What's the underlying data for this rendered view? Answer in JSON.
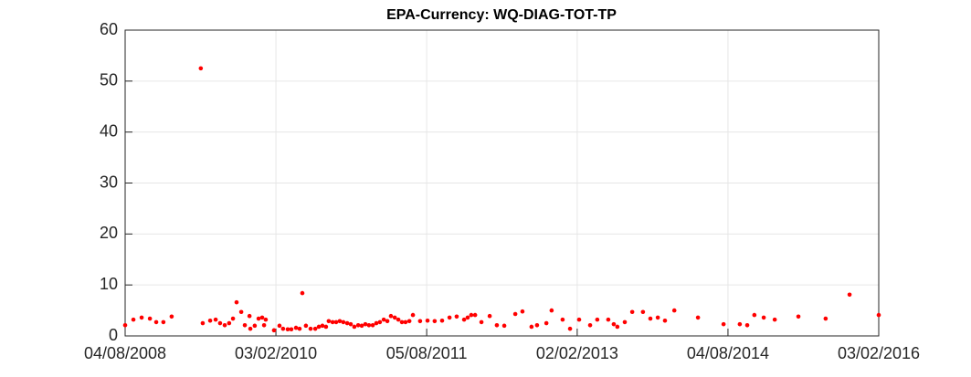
{
  "chart_data": {
    "type": "scatter",
    "title": "EPA-Currency: WQ-DIAG-TOT-TP",
    "color": "#ff0000",
    "grid": true,
    "xlim": [
      "2008-08-04",
      "2016-02-03"
    ],
    "xticks": [
      {
        "value": "2008-08-04",
        "label": "04/08/2008"
      },
      {
        "value": "2010-02-03",
        "label": "03/02/2010"
      },
      {
        "value": "2011-08-05",
        "label": "05/08/2011"
      },
      {
        "value": "2013-02-02",
        "label": "02/02/2013"
      },
      {
        "value": "2014-08-04",
        "label": "04/08/2014"
      },
      {
        "value": "2016-02-03",
        "label": "03/02/2016"
      }
    ],
    "ylim": [
      0,
      60
    ],
    "yticks": [
      0,
      10,
      20,
      30,
      40,
      50,
      60
    ],
    "x": [
      "2008-08-04",
      "2008-09-03",
      "2008-10-03",
      "2008-11-02",
      "2008-11-25",
      "2008-12-21",
      "2009-01-20",
      "2009-05-06",
      "2009-05-13",
      "2009-06-09",
      "2009-06-29",
      "2009-07-15",
      "2009-08-01",
      "2009-08-17",
      "2009-08-31",
      "2009-09-13",
      "2009-09-30",
      "2009-10-13",
      "2009-10-30",
      "2009-11-02",
      "2009-11-18",
      "2009-12-02",
      "2009-12-15",
      "2009-12-22",
      "2009-12-28",
      "2010-01-27",
      "2010-02-16",
      "2010-03-01",
      "2010-03-18",
      "2010-03-31",
      "2010-04-17",
      "2010-04-30",
      "2010-05-10",
      "2010-05-23",
      "2010-06-09",
      "2010-06-26",
      "2010-07-09",
      "2010-07-22",
      "2010-08-04",
      "2010-08-14",
      "2010-08-28",
      "2010-09-10",
      "2010-09-23",
      "2010-10-06",
      "2010-10-20",
      "2010-11-02",
      "2010-11-15",
      "2010-11-29",
      "2010-12-12",
      "2010-12-25",
      "2011-01-07",
      "2011-01-21",
      "2011-02-03",
      "2011-02-16",
      "2011-03-02",
      "2011-03-15",
      "2011-03-28",
      "2011-04-11",
      "2011-04-24",
      "2011-05-07",
      "2011-05-20",
      "2011-06-03",
      "2011-06-16",
      "2011-07-12",
      "2011-08-08",
      "2011-09-03",
      "2011-09-30",
      "2011-10-27",
      "2011-11-22",
      "2011-12-19",
      "2012-01-01",
      "2012-01-14",
      "2012-01-28",
      "2012-02-20",
      "2012-03-21",
      "2012-04-16",
      "2012-05-13",
      "2012-06-22",
      "2012-07-18",
      "2012-08-20",
      "2012-09-09",
      "2012-10-13",
      "2012-11-01",
      "2012-12-11",
      "2013-01-07",
      "2013-02-09",
      "2013-03-21",
      "2013-04-16",
      "2013-05-26",
      "2013-06-15",
      "2013-06-28",
      "2013-07-25",
      "2013-08-21",
      "2013-09-29",
      "2013-10-26",
      "2013-11-22",
      "2013-12-18",
      "2014-01-21",
      "2014-04-17",
      "2014-07-19",
      "2014-09-16",
      "2014-10-13",
      "2014-11-08",
      "2014-12-12",
      "2015-01-21",
      "2015-04-17",
      "2015-07-25",
      "2015-10-20",
      "2016-02-03"
    ],
    "values": [
      2.1,
      3.2,
      3.6,
      3.4,
      2.7,
      2.7,
      3.8,
      52.5,
      2.5,
      3.0,
      3.2,
      2.5,
      2.1,
      2.5,
      3.4,
      6.6,
      4.7,
      2.1,
      3.9,
      1.4,
      2.0,
      3.4,
      3.6,
      2.1,
      3.2,
      1.1,
      2.0,
      1.4,
      1.3,
      1.3,
      1.6,
      1.4,
      8.4,
      2.0,
      1.4,
      1.4,
      1.8,
      2.0,
      1.8,
      2.9,
      2.7,
      2.7,
      2.9,
      2.7,
      2.5,
      2.3,
      1.8,
      2.1,
      2.0,
      2.3,
      2.1,
      2.1,
      2.5,
      2.7,
      3.2,
      2.9,
      3.9,
      3.6,
      3.2,
      2.7,
      2.7,
      2.9,
      4.1,
      2.9,
      3.0,
      2.9,
      3.0,
      3.6,
      3.8,
      3.2,
      3.6,
      4.1,
      4.1,
      2.7,
      3.9,
      2.1,
      2.0,
      4.3,
      4.8,
      1.8,
      2.1,
      2.5,
      5.0,
      3.2,
      1.4,
      3.2,
      2.1,
      3.2,
      3.2,
      2.3,
      1.8,
      2.7,
      4.7,
      4.7,
      3.4,
      3.6,
      3.0,
      5.0,
      3.6,
      2.3,
      2.3,
      2.1,
      4.1,
      3.6,
      3.2,
      3.8,
      3.4,
      8.1,
      4.1
    ]
  }
}
